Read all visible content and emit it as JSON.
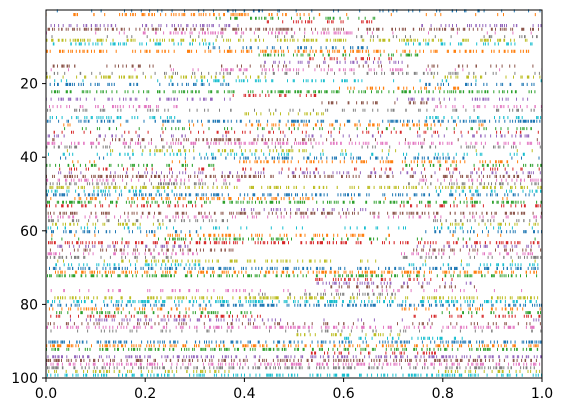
{
  "chart_data": {
    "type": "eventplot",
    "title": "",
    "xlabel": "",
    "ylabel": "",
    "xlim": [
      0,
      1
    ],
    "ylim": [
      100,
      0
    ],
    "y_inverted": true,
    "grid": false,
    "legend": "none",
    "xticks": [
      0.0,
      0.2,
      0.4,
      0.6,
      0.8,
      1.0
    ],
    "xtick_labels": [
      "0.0",
      "0.2",
      "0.4",
      "0.6",
      "0.8",
      "1.0"
    ],
    "yticks": [
      20,
      40,
      60,
      80,
      100
    ],
    "ytick_labels": [
      "20",
      "40",
      "60",
      "80",
      "100"
    ],
    "color_cycle": [
      "#1f77b4",
      "#ff7f0e",
      "#2ca02c",
      "#d62728",
      "#9467bd",
      "#8c564b",
      "#e377c2",
      "#7f7f7f",
      "#bcbd22",
      "#17becf"
    ],
    "row_count": 100,
    "row_densities": [
      [
        0.0,
        0.4,
        5
      ],
      [
        0.4,
        0.8,
        30
      ],
      [
        0.8,
        1.0,
        5
      ],
      [
        0.0,
        0.1,
        5
      ],
      [
        0.1,
        0.3,
        30
      ],
      [
        0.3,
        1.0,
        2
      ]
    ]
  }
}
